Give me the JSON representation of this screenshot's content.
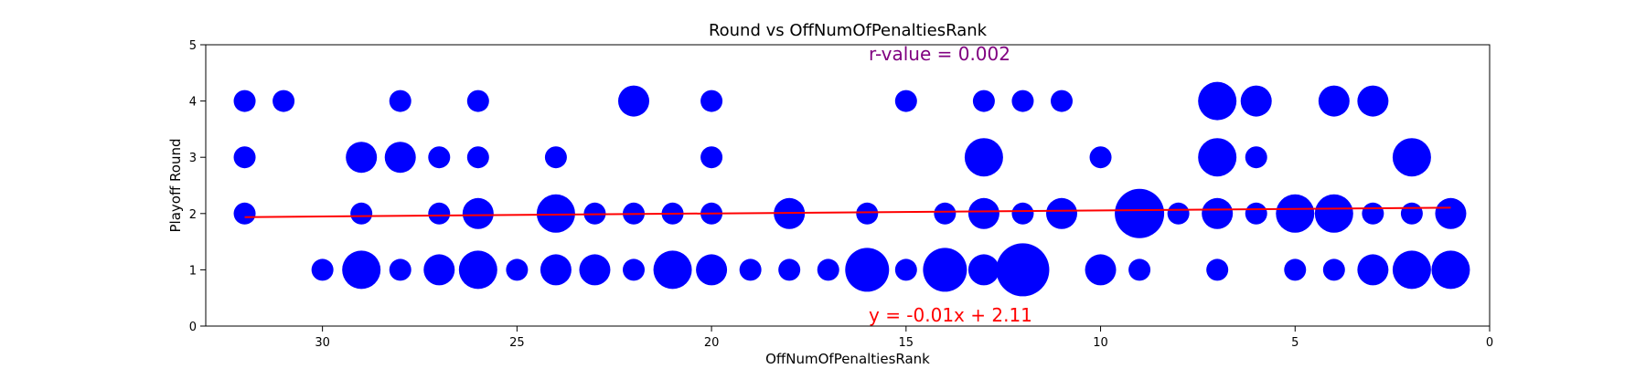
{
  "chart_data": {
    "type": "scatter",
    "title": "Round vs OffNumOfPenaltiesRank",
    "xlabel": "OffNumOfPenaltiesRank",
    "ylabel": "Playoff Round",
    "xlim": [
      33,
      0
    ],
    "ylim": [
      0,
      5
    ],
    "x_inverted": true,
    "x_ticks": [
      30,
      25,
      20,
      15,
      10,
      5,
      0
    ],
    "y_ticks": [
      0,
      1,
      2,
      3,
      4,
      5
    ],
    "grid": false,
    "marker_color": "#0000ff",
    "trend_color": "#ff0000",
    "r_color": "#800080",
    "annotations": {
      "r_value": "r-value = 0.002",
      "equation": "y = -0.01x + 2.11"
    },
    "trendline": {
      "slope": -0.00541,
      "intercept": 2.11,
      "x_range": [
        32,
        1
      ]
    },
    "points": [
      {
        "x": 32,
        "y": 4,
        "s": 1
      },
      {
        "x": 31,
        "y": 4,
        "s": 1
      },
      {
        "x": 28,
        "y": 4,
        "s": 1
      },
      {
        "x": 26,
        "y": 4,
        "s": 1
      },
      {
        "x": 22,
        "y": 4,
        "s": 2
      },
      {
        "x": 20,
        "y": 4,
        "s": 1
      },
      {
        "x": 15,
        "y": 4,
        "s": 1
      },
      {
        "x": 13,
        "y": 4,
        "s": 1
      },
      {
        "x": 12,
        "y": 4,
        "s": 1
      },
      {
        "x": 11,
        "y": 4,
        "s": 1
      },
      {
        "x": 7,
        "y": 4,
        "s": 3
      },
      {
        "x": 6,
        "y": 4,
        "s": 2
      },
      {
        "x": 4,
        "y": 4,
        "s": 2
      },
      {
        "x": 3,
        "y": 4,
        "s": 2
      },
      {
        "x": 32,
        "y": 3,
        "s": 1
      },
      {
        "x": 29,
        "y": 3,
        "s": 2
      },
      {
        "x": 28,
        "y": 3,
        "s": 2
      },
      {
        "x": 27,
        "y": 3,
        "s": 1
      },
      {
        "x": 26,
        "y": 3,
        "s": 1
      },
      {
        "x": 24,
        "y": 3,
        "s": 1
      },
      {
        "x": 20,
        "y": 3,
        "s": 1
      },
      {
        "x": 13,
        "y": 3,
        "s": 3
      },
      {
        "x": 10,
        "y": 3,
        "s": 1
      },
      {
        "x": 7,
        "y": 3,
        "s": 3
      },
      {
        "x": 6,
        "y": 3,
        "s": 1
      },
      {
        "x": 2,
        "y": 3,
        "s": 3
      },
      {
        "x": 32,
        "y": 2,
        "s": 1
      },
      {
        "x": 29,
        "y": 2,
        "s": 1
      },
      {
        "x": 27,
        "y": 2,
        "s": 1
      },
      {
        "x": 26,
        "y": 2,
        "s": 2
      },
      {
        "x": 24,
        "y": 2,
        "s": 3
      },
      {
        "x": 23,
        "y": 2,
        "s": 1
      },
      {
        "x": 22,
        "y": 2,
        "s": 1
      },
      {
        "x": 21,
        "y": 2,
        "s": 1
      },
      {
        "x": 20,
        "y": 2,
        "s": 1
      },
      {
        "x": 18,
        "y": 2,
        "s": 2
      },
      {
        "x": 16,
        "y": 2,
        "s": 1
      },
      {
        "x": 14,
        "y": 2,
        "s": 1
      },
      {
        "x": 13,
        "y": 2,
        "s": 2
      },
      {
        "x": 12,
        "y": 2,
        "s": 1
      },
      {
        "x": 11,
        "y": 2,
        "s": 2
      },
      {
        "x": 9,
        "y": 2,
        "s": 5
      },
      {
        "x": 8,
        "y": 2,
        "s": 1
      },
      {
        "x": 7,
        "y": 2,
        "s": 2
      },
      {
        "x": 6,
        "y": 2,
        "s": 1
      },
      {
        "x": 5,
        "y": 2,
        "s": 3
      },
      {
        "x": 4,
        "y": 2,
        "s": 3
      },
      {
        "x": 3,
        "y": 2,
        "s": 1
      },
      {
        "x": 2,
        "y": 2,
        "s": 1
      },
      {
        "x": 1,
        "y": 2,
        "s": 2
      },
      {
        "x": 30,
        "y": 1,
        "s": 1
      },
      {
        "x": 29,
        "y": 1,
        "s": 3
      },
      {
        "x": 28,
        "y": 1,
        "s": 1
      },
      {
        "x": 27,
        "y": 1,
        "s": 2
      },
      {
        "x": 26,
        "y": 1,
        "s": 3
      },
      {
        "x": 25,
        "y": 1,
        "s": 1
      },
      {
        "x": 24,
        "y": 1,
        "s": 2
      },
      {
        "x": 23,
        "y": 1,
        "s": 2
      },
      {
        "x": 22,
        "y": 1,
        "s": 1
      },
      {
        "x": 21,
        "y": 1,
        "s": 3
      },
      {
        "x": 20,
        "y": 1,
        "s": 2
      },
      {
        "x": 19,
        "y": 1,
        "s": 1
      },
      {
        "x": 18,
        "y": 1,
        "s": 1
      },
      {
        "x": 17,
        "y": 1,
        "s": 1
      },
      {
        "x": 16,
        "y": 1,
        "s": 4
      },
      {
        "x": 15,
        "y": 1,
        "s": 1
      },
      {
        "x": 14,
        "y": 1,
        "s": 4
      },
      {
        "x": 13,
        "y": 1,
        "s": 2
      },
      {
        "x": 12,
        "y": 1,
        "s": 6
      },
      {
        "x": 10,
        "y": 1,
        "s": 2
      },
      {
        "x": 9,
        "y": 1,
        "s": 1
      },
      {
        "x": 7,
        "y": 1,
        "s": 1
      },
      {
        "x": 5,
        "y": 1,
        "s": 1
      },
      {
        "x": 4,
        "y": 1,
        "s": 1
      },
      {
        "x": 3,
        "y": 1,
        "s": 2
      },
      {
        "x": 2,
        "y": 1,
        "s": 3
      },
      {
        "x": 1,
        "y": 1,
        "s": 3
      }
    ]
  }
}
